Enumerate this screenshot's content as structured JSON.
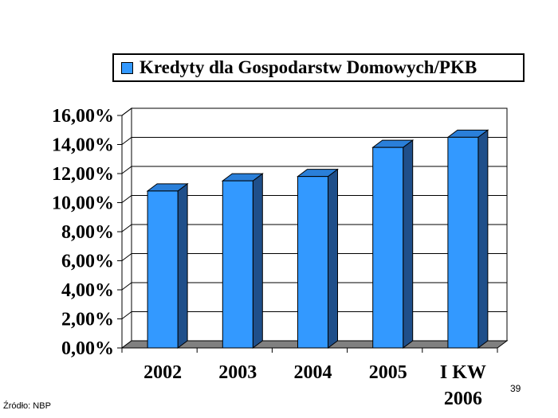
{
  "chart_data": {
    "type": "bar",
    "categories": [
      "2002",
      "2003",
      "2004",
      "2005",
      "I KW 2006"
    ],
    "series": [
      {
        "name": "Kredyty dla Gospodarstw Domowych/PKB",
        "values": [
          10.8,
          11.5,
          11.8,
          13.8,
          14.5
        ]
      }
    ],
    "yticks": [
      "0,00%",
      "2,00%",
      "4,00%",
      "6,00%",
      "8,00%",
      "10,00%",
      "12,00%",
      "14,00%",
      "16,00%"
    ],
    "ylim": [
      0,
      16
    ],
    "grid": true,
    "legend": "top",
    "bar_color": "#3399ff",
    "bar_side_color": "#1f4f8a",
    "bar_top_color": "#2a7fd9",
    "floor_color": "#808080"
  },
  "footer": {
    "source": "Źródło: NBP",
    "page_number": "39"
  }
}
